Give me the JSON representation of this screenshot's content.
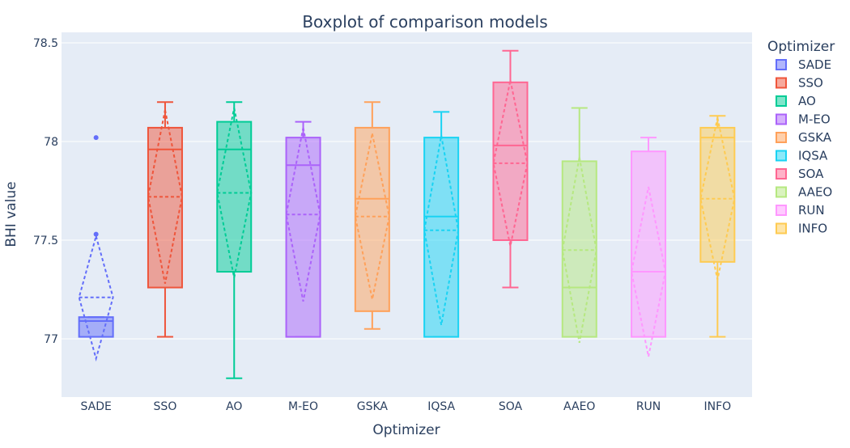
{
  "chart_data": {
    "type": "box",
    "title": "Boxplot of comparison models",
    "xlabel": "Optimizer",
    "ylabel": "BHI value",
    "ylim": [
      76.7,
      78.55
    ],
    "yticks": [
      77,
      77.5,
      78,
      78.5
    ],
    "ytick_labels": [
      "77",
      "77.5",
      "78",
      "78.5"
    ],
    "legend_title": "Optimizer",
    "legend_position": "right",
    "grid": true,
    "boxmean": "sd",
    "series": [
      {
        "name": "SADE",
        "color": "#636efa",
        "q1": 77.01,
        "median": 77.09,
        "q3": 77.11,
        "lower_fence": 77.01,
        "upper_fence": 77.11,
        "mean": 77.21,
        "sd": 0.31,
        "outliers": [
          78.02,
          77.53
        ]
      },
      {
        "name": "SSO",
        "color": "#ef553b",
        "q1": 77.26,
        "median": 77.96,
        "q3": 78.07,
        "lower_fence": 77.01,
        "upper_fence": 78.2,
        "mean": 77.72,
        "sd": 0.44,
        "outliers": []
      },
      {
        "name": "AO",
        "color": "#00cc96",
        "q1": 77.34,
        "median": 77.96,
        "q3": 78.1,
        "lower_fence": 76.8,
        "upper_fence": 78.2,
        "mean": 77.74,
        "sd": 0.43,
        "outliers": []
      },
      {
        "name": "M-EO",
        "color": "#ab63fa",
        "q1": 77.01,
        "median": 77.88,
        "q3": 78.02,
        "lower_fence": 77.01,
        "upper_fence": 78.1,
        "mean": 77.63,
        "sd": 0.44,
        "outliers": []
      },
      {
        "name": "GSKA",
        "color": "#ffa15a",
        "q1": 77.14,
        "median": 77.71,
        "q3": 78.07,
        "lower_fence": 77.05,
        "upper_fence": 78.2,
        "mean": 77.62,
        "sd": 0.42,
        "outliers": []
      },
      {
        "name": "IQSA",
        "color": "#19d3f3",
        "q1": 77.01,
        "median": 77.62,
        "q3": 78.02,
        "lower_fence": 77.01,
        "upper_fence": 78.15,
        "mean": 77.55,
        "sd": 0.48,
        "outliers": []
      },
      {
        "name": "SOA",
        "color": "#ff6692",
        "q1": 77.5,
        "median": 77.98,
        "q3": 78.3,
        "lower_fence": 77.26,
        "upper_fence": 78.46,
        "mean": 77.89,
        "sd": 0.42,
        "outliers": []
      },
      {
        "name": "AAEO",
        "color": "#b6e880",
        "q1": 77.01,
        "median": 77.26,
        "q3": 77.9,
        "lower_fence": 77.01,
        "upper_fence": 78.17,
        "mean": 77.45,
        "sd": 0.47,
        "outliers": []
      },
      {
        "name": "RUN",
        "color": "#ff97ff",
        "q1": 77.01,
        "median": 77.34,
        "q3": 77.95,
        "lower_fence": 77.01,
        "upper_fence": 78.02,
        "mean": 77.34,
        "sd": 0.43,
        "outliers": []
      },
      {
        "name": "INFO",
        "color": "#fecb52",
        "q1": 77.39,
        "median": 78.02,
        "q3": 78.07,
        "lower_fence": 77.01,
        "upper_fence": 78.13,
        "mean": 77.71,
        "sd": 0.41,
        "outliers": []
      }
    ]
  }
}
